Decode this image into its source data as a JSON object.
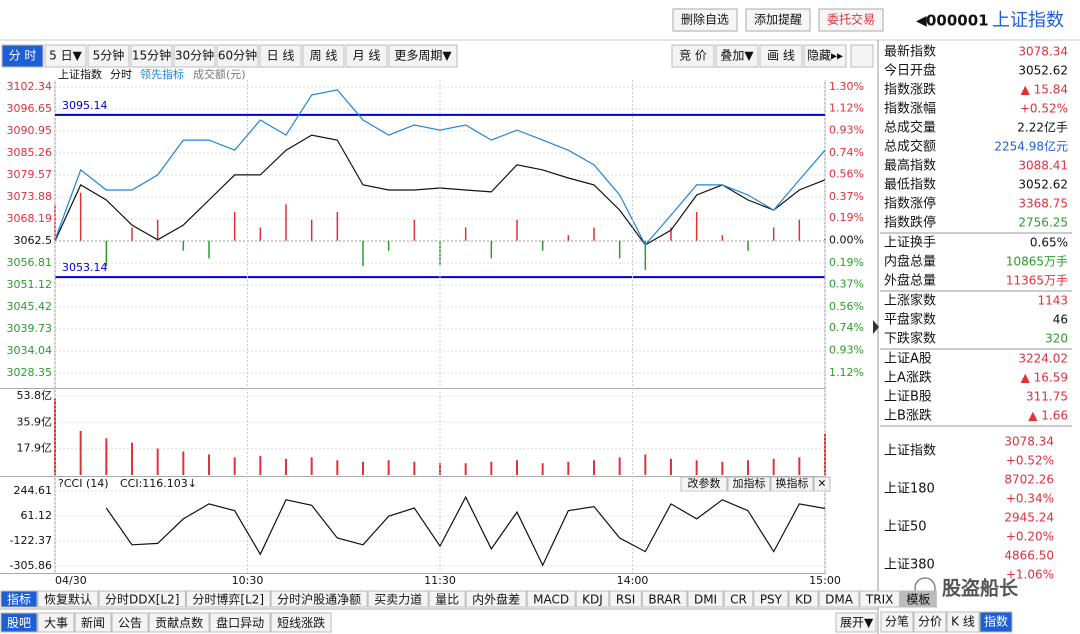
{
  "header": {
    "buttons": [
      "删除自选",
      "添加提醒",
      "委托交易"
    ],
    "code": "000001",
    "name": "上证指数"
  },
  "toolbar": {
    "periods": [
      "分 时",
      "5 日▼",
      "5分钟",
      "15分钟",
      "30分钟",
      "60分钟",
      "日 线",
      "周 线",
      "月 线",
      "更多周期▼"
    ],
    "tools": [
      "竞 价",
      "叠加▼",
      "画 线",
      "隐藏▸▸"
    ]
  },
  "legend_row": [
    "上证指数",
    "分时",
    "领先指标",
    "成交额(元)"
  ],
  "chart_data": [
    {
      "type": "line",
      "x": [
        0,
        8,
        16,
        24,
        32,
        40,
        48,
        56,
        64,
        72,
        80,
        88,
        96,
        104,
        112,
        120,
        128,
        136,
        144,
        152,
        160,
        168,
        176,
        184,
        192,
        200,
        208,
        216,
        224,
        232,
        240
      ],
      "xlim": [
        0,
        240
      ],
      "series": [
        {
          "name": "上证指数",
          "color": "#111111",
          "values": [
            3062.5,
            3077.0,
            3073.1,
            3066.6,
            3062.8,
            3066.6,
            3073.1,
            3079.6,
            3079.6,
            3086.0,
            3089.9,
            3088.6,
            3077.0,
            3075.7,
            3075.7,
            3076.2,
            3075.7,
            3075.2,
            3082.2,
            3080.9,
            3078.8,
            3077.0,
            3070.5,
            3061.5,
            3065.3,
            3074.4,
            3077.0,
            3073.1,
            3070.5,
            3075.7,
            3078.34
          ]
        },
        {
          "name": "领先指标",
          "color": "#1f86d6",
          "values": [
            3062.8,
            3080.9,
            3075.7,
            3075.7,
            3079.6,
            3088.6,
            3088.6,
            3086.0,
            3093.8,
            3089.9,
            3100.3,
            3101.6,
            3093.8,
            3089.9,
            3092.5,
            3091.2,
            3092.5,
            3088.6,
            3091.2,
            3088.6,
            3086.0,
            3082.2,
            3074.4,
            3061.5,
            3069.2,
            3077.0,
            3077.0,
            3074.4,
            3070.5,
            3078.3,
            3086.0
          ]
        }
      ],
      "bars": {
        "up_color": "#e0303a",
        "down_color": "#2a9d2a",
        "values": [
          3072,
          3075,
          3056,
          3066,
          3068,
          3060,
          3058,
          3070,
          3066,
          3072,
          3068,
          3070,
          3056,
          3060,
          3068,
          3056,
          3066,
          3058,
          3068,
          3060,
          3064,
          3066,
          3058,
          3055,
          3066,
          3070,
          3064,
          3060,
          3066,
          3068,
          3063
        ]
      },
      "hlines": [
        3095.14,
        3053.14
      ],
      "hline_color": "#0000cc",
      "ylim": [
        3028.35,
        3102.34
      ],
      "yticks": [
        3102.34,
        3096.65,
        3090.95,
        3085.26,
        3079.57,
        3073.88,
        3068.19,
        3062.5,
        3056.81,
        3051.12,
        3045.42,
        3039.73,
        3034.04,
        3028.35
      ],
      "y2lim": [
        -1.12,
        1.3
      ],
      "y2ticks": [
        {
          "value": 1.3,
          "label": "1.30%"
        },
        {
          "value": 1.12,
          "label": "1.12%"
        },
        {
          "value": 0.93,
          "label": "0.93%"
        },
        {
          "value": 0.74,
          "label": "0.74%"
        },
        {
          "value": 0.56,
          "label": "0.56%"
        },
        {
          "value": 0.37,
          "label": "0.37%"
        },
        {
          "value": 0.19,
          "label": "0.19%"
        },
        {
          "value": 0,
          "label": "0.00%"
        },
        {
          "value": -0.19,
          "label": "0.19%"
        },
        {
          "value": -0.37,
          "label": "0.37%"
        },
        {
          "value": -0.56,
          "label": "0.56%"
        },
        {
          "value": -0.74,
          "label": "0.74%"
        },
        {
          "value": -0.93,
          "label": "0.93%"
        },
        {
          "value": -1.12,
          "label": "1.12%"
        }
      ],
      "grid": true
    },
    {
      "type": "bar",
      "color": "#e0303a",
      "x": [
        0,
        8,
        16,
        24,
        32,
        40,
        48,
        56,
        64,
        72,
        80,
        88,
        96,
        104,
        112,
        120,
        128,
        136,
        144,
        152,
        160,
        168,
        176,
        184,
        192,
        200,
        208,
        216,
        224,
        232,
        240
      ],
      "xlim": [
        0,
        240
      ],
      "values": [
        52,
        30,
        25,
        22,
        18,
        16,
        14,
        12,
        13,
        11,
        12,
        10,
        9,
        10,
        9,
        8,
        8,
        9,
        10,
        8,
        9,
        10,
        12,
        14,
        11,
        10,
        9,
        10,
        11,
        12,
        28
      ],
      "ylim": [
        0,
        53.8
      ],
      "yticks": [
        {
          "value": 53.8,
          "label": "53.8亿"
        },
        {
          "value": 35.9,
          "label": "35.9亿"
        },
        {
          "value": 17.9,
          "label": "17.9亿"
        }
      ]
    },
    {
      "type": "line",
      "title": "?CCI (14)",
      "readout": "CCI:116.103↓",
      "buttons": [
        "改参数",
        "加指标",
        "换指标",
        "✕"
      ],
      "x": [
        0,
        8,
        16,
        24,
        32,
        40,
        48,
        56,
        64,
        72,
        80,
        88,
        96,
        104,
        112,
        120,
        128,
        136,
        144,
        152,
        160,
        168,
        176,
        184,
        192,
        200,
        208,
        216,
        224,
        232,
        240
      ],
      "xlim": [
        0,
        240
      ],
      "series": [
        {
          "name": "CCI",
          "color": "#111111",
          "values": [
            null,
            null,
            120,
            -150,
            -140,
            40,
            150,
            100,
            -220,
            180,
            140,
            -100,
            -150,
            60,
            120,
            -160,
            200,
            -180,
            90,
            -300,
            100,
            130,
            -100,
            -200,
            150,
            40,
            180,
            100,
            -200,
            150,
            116.103
          ]
        }
      ],
      "ylim": [
        -305.86,
        244.61
      ],
      "yticks": [
        244.61,
        61.12,
        -122.37,
        -305.86
      ],
      "xticks": [
        {
          "value": 0,
          "label": "04/30"
        },
        {
          "value": 60,
          "label": "10:30"
        },
        {
          "value": 120,
          "label": "11:30"
        },
        {
          "value": 180,
          "label": "14:00"
        },
        {
          "value": 240,
          "label": "15:00"
        }
      ]
    }
  ],
  "quote_groups": [
    [
      {
        "label": "最新指数",
        "value": "3078.34",
        "color": "#e0303a"
      },
      {
        "label": "今日开盘",
        "value": "3052.62",
        "color": "#111111"
      },
      {
        "label": "指数涨跌",
        "value": "▲ 15.84",
        "color": "#e0303a"
      },
      {
        "label": "指数涨幅",
        "value": "+0.52%",
        "color": "#e0303a"
      },
      {
        "label": "总成交量",
        "value": "2.22亿手",
        "color": "#111111"
      },
      {
        "label": "总成交额",
        "value": "2254.98亿元",
        "color": "#1f5fd6"
      },
      {
        "label": "最高指数",
        "value": "3088.41",
        "color": "#e0303a"
      },
      {
        "label": "最低指数",
        "value": "3052.62",
        "color": "#111111"
      },
      {
        "label": "指数涨停",
        "value": "3368.75",
        "color": "#e0303a"
      },
      {
        "label": "指数跌停",
        "value": "2756.25",
        "color": "#2a9d2a"
      }
    ],
    [
      {
        "label": "上证换手",
        "value": "0.65%",
        "color": "#111111"
      },
      {
        "label": "内盘总量",
        "value": "10865万手",
        "color": "#2a9d2a"
      },
      {
        "label": "外盘总量",
        "value": "11365万手",
        "color": "#e0303a"
      }
    ],
    [
      {
        "label": "上涨家数",
        "value": "1143",
        "color": "#e0303a"
      },
      {
        "label": "平盘家数",
        "value": "46",
        "color": "#111111"
      },
      {
        "label": "下跌家数",
        "value": "320",
        "color": "#2a9d2a"
      }
    ],
    [
      {
        "label": "上证A股",
        "value": "3224.02",
        "color": "#e0303a"
      },
      {
        "label": "上A涨跌",
        "value": "▲ 16.59",
        "color": "#e0303a"
      },
      {
        "label": "上证B股",
        "value": "311.75",
        "color": "#e0303a"
      },
      {
        "label": "上B涨跌",
        "value": "▲ 1.66",
        "color": "#e0303a"
      }
    ]
  ],
  "index_list": [
    {
      "label": "上证指数",
      "value": "3078.34",
      "change": "+0.52%"
    },
    {
      "label": "上证180",
      "value": "8702.26",
      "change": "+0.34%"
    },
    {
      "label": "上证50",
      "value": "2945.24",
      "change": "+0.20%"
    },
    {
      "label": "上证380",
      "value": "4866.50",
      "change": "+1.06%"
    }
  ],
  "side_tabs": [
    "分笔",
    "分价",
    "K 线",
    "指数"
  ],
  "indicator_tabs": [
    "指标",
    "恢复默认",
    "分时DDX[L2]",
    "分时博弈[L2]",
    "分时沪股通净额",
    "买卖力道",
    "量比",
    "内外盘差",
    "MACD",
    "KDJ",
    "RSI",
    "BRAR",
    "DMI",
    "CR",
    "PSY",
    "KD",
    "DMA",
    "TRIX",
    "模板"
  ],
  "bottom_tabs": [
    "股吧",
    "大事",
    "新闻",
    "公告",
    "贡献点数",
    "盘口异动",
    "短线涨跌"
  ],
  "expand": "展开▼",
  "watermark": "股盗船长"
}
